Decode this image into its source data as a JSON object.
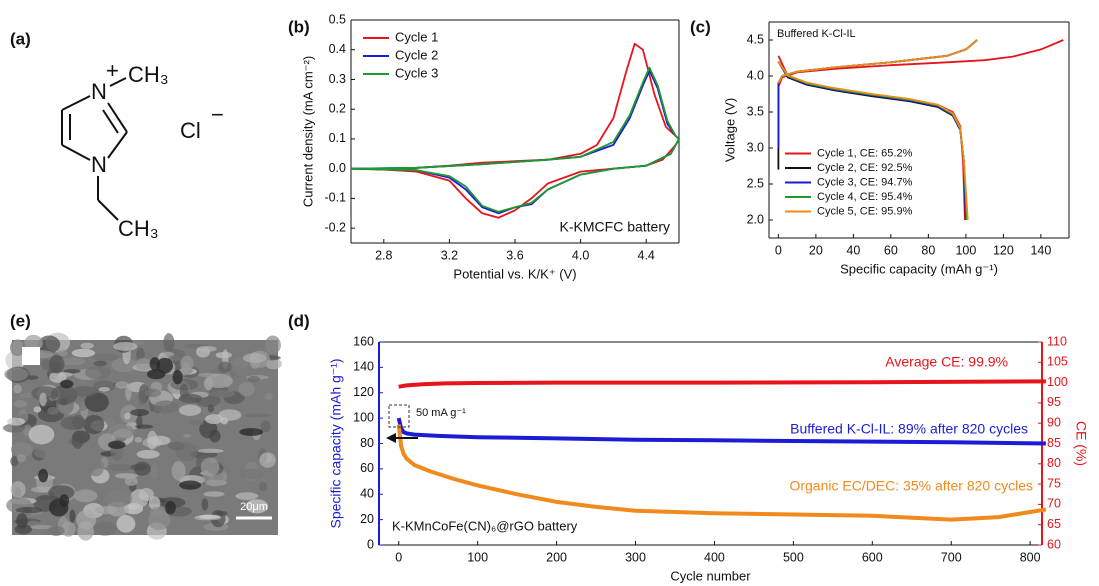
{
  "figure_labels": [
    "(a)",
    "(b)",
    "(c)",
    "(e)",
    "(d)"
  ],
  "molecule": {
    "atoms": [
      "N",
      "N"
    ],
    "charge": "+",
    "methyl": "CH₃",
    "ethyl": "CH₃",
    "anion": "Cl",
    "anion_charge": "−"
  },
  "sem": {
    "scale_bar": "20μm"
  },
  "chart_data": [
    {
      "type": "line",
      "xlabel": "Potential vs. K/K⁺ (V)",
      "ylabel": "Current density (mA cm⁻²)",
      "xlim": [
        2.6,
        4.6
      ],
      "ylim": [
        -0.25,
        0.5
      ],
      "xticks": [
        2.8,
        3.2,
        3.6,
        {
          "value": 4,
          "label": "4.0"
        },
        4.4
      ],
      "yticks": [
        -0.2,
        -0.1,
        {
          "value": 0,
          "label": "0.0"
        },
        0.1,
        0.2,
        0.3,
        0.4,
        0.5
      ],
      "legend": "upper left",
      "annotations": [
        "K-KMCFC battery"
      ],
      "series": [
        {
          "name": "Cycle 1",
          "color": "#e8141b",
          "x": [
            2.6,
            2.8,
            3.0,
            3.2,
            3.4,
            3.6,
            3.8,
            4.0,
            4.1,
            4.2,
            4.28,
            4.33,
            4.38,
            4.45,
            4.52,
            4.58,
            4.6,
            4.58,
            4.5,
            4.4,
            4.2,
            4.0,
            3.8,
            3.7,
            3.6,
            3.5,
            3.4,
            3.3,
            3.2,
            3.0,
            2.8,
            2.6
          ],
          "values": [
            0,
            0,
            0.003,
            0.01,
            0.02,
            0.025,
            0.03,
            0.05,
            0.08,
            0.17,
            0.33,
            0.42,
            0.4,
            0.25,
            0.14,
            0.11,
            0.1,
            0.08,
            0.03,
            0.01,
            0,
            -0.01,
            -0.05,
            -0.1,
            -0.14,
            -0.165,
            -0.15,
            -0.1,
            -0.04,
            -0.01,
            -0.003,
            0
          ]
        },
        {
          "name": "Cycle 2",
          "color": "#1c1cd6",
          "x": [
            2.6,
            3.0,
            3.4,
            3.8,
            4.0,
            4.2,
            4.3,
            4.38,
            4.42,
            4.47,
            4.53,
            4.58,
            4.6,
            4.55,
            4.4,
            4.2,
            4.0,
            3.8,
            3.7,
            3.6,
            3.5,
            3.4,
            3.3,
            3.2,
            3.0,
            2.6
          ],
          "values": [
            0,
            0.003,
            0.015,
            0.03,
            0.04,
            0.08,
            0.17,
            0.28,
            0.33,
            0.27,
            0.15,
            0.11,
            0.1,
            0.05,
            0.01,
            0,
            -0.02,
            -0.07,
            -0.12,
            -0.13,
            -0.15,
            -0.13,
            -0.07,
            -0.03,
            -0.005,
            0
          ]
        },
        {
          "name": "Cycle 3",
          "color": "#1e9a2e",
          "x": [
            2.6,
            3.0,
            3.4,
            3.8,
            4.0,
            4.2,
            4.3,
            4.38,
            4.42,
            4.47,
            4.53,
            4.58,
            4.6,
            4.55,
            4.4,
            4.2,
            4.0,
            3.8,
            3.7,
            3.6,
            3.5,
            3.4,
            3.3,
            3.2,
            3.0,
            2.6
          ],
          "values": [
            0,
            0.003,
            0.015,
            0.03,
            0.04,
            0.09,
            0.18,
            0.29,
            0.34,
            0.28,
            0.16,
            0.11,
            0.1,
            0.05,
            0.01,
            0,
            -0.02,
            -0.07,
            -0.115,
            -0.13,
            -0.145,
            -0.125,
            -0.06,
            -0.025,
            -0.005,
            0
          ]
        }
      ]
    },
    {
      "type": "line",
      "title": "Buffered K-Cl-IL",
      "xlabel": "Specific capacity (mAh g⁻¹)",
      "ylabel": "Voltage (V)",
      "xlim": [
        -5,
        155
      ],
      "ylim": [
        1.75,
        4.75
      ],
      "xticks": [
        0,
        20,
        40,
        60,
        80,
        100,
        120,
        140
      ],
      "yticks": [
        {
          "value": 2,
          "label": "2.0"
        },
        2.5,
        {
          "value": 3,
          "label": "3.0"
        },
        3.5,
        {
          "value": 4,
          "label": "4.0"
        },
        4.5
      ],
      "legend": "lower left",
      "series": [
        {
          "name": "Cycle 1, CE: 65.2%",
          "color": "#e8141b",
          "x": [
            0,
            2,
            10,
            30,
            60,
            90,
            110,
            125,
            140,
            152,
            null,
            0,
            5,
            15,
            30,
            50,
            70,
            85,
            93,
            97,
            98.5,
            99.5
          ],
          "values": [
            3.85,
            3.98,
            4.05,
            4.1,
            4.15,
            4.19,
            4.22,
            4.27,
            4.37,
            4.5,
            null,
            4.28,
            4.0,
            3.9,
            3.82,
            3.74,
            3.67,
            3.6,
            3.5,
            3.3,
            2.8,
            2.0
          ]
        },
        {
          "name": "Cycle 2, CE: 92.5%",
          "color": "#111111",
          "x": [
            0,
            0,
            2,
            10,
            30,
            60,
            90,
            100,
            106,
            null,
            0,
            5,
            15,
            30,
            50,
            70,
            85,
            93,
            97,
            99,
            100
          ],
          "values": [
            2.7,
            3.9,
            4.0,
            4.06,
            4.12,
            4.19,
            4.28,
            4.37,
            4.5,
            null,
            4.2,
            3.98,
            3.88,
            3.8,
            3.72,
            3.65,
            3.57,
            3.45,
            3.25,
            2.8,
            2.0
          ]
        },
        {
          "name": "Cycle 3, CE: 94.7%",
          "color": "#1c1cd6",
          "x": [
            0,
            0,
            2,
            10,
            30,
            60,
            90,
            100,
            106,
            null,
            0,
            5,
            15,
            30,
            50,
            70,
            85,
            93,
            97,
            99,
            100
          ],
          "values": [
            3.0,
            3.9,
            4.0,
            4.06,
            4.12,
            4.19,
            4.28,
            4.37,
            4.5,
            null,
            4.2,
            3.99,
            3.89,
            3.81,
            3.73,
            3.66,
            3.58,
            3.46,
            3.26,
            2.8,
            2.0
          ]
        },
        {
          "name": "Cycle 4, CE: 95.4%",
          "color": "#1e9a2e",
          "x": [
            0,
            2,
            10,
            30,
            60,
            90,
            100,
            106,
            null,
            0,
            5,
            15,
            30,
            50,
            70,
            85,
            93,
            97,
            99,
            100.5
          ],
          "values": [
            3.9,
            4.0,
            4.06,
            4.12,
            4.19,
            4.28,
            4.37,
            4.5,
            null,
            4.2,
            4.0,
            3.9,
            3.82,
            3.74,
            3.67,
            3.59,
            3.47,
            3.27,
            2.8,
            2.0
          ]
        },
        {
          "name": "Cycle 5, CE: 95.9%",
          "color": "#f08a1c",
          "x": [
            0,
            2,
            10,
            30,
            60,
            90,
            100,
            106,
            null,
            0,
            5,
            15,
            30,
            50,
            70,
            85,
            93,
            97,
            99,
            101
          ],
          "values": [
            3.9,
            4.0,
            4.06,
            4.12,
            4.19,
            4.28,
            4.37,
            4.5,
            null,
            4.2,
            4.01,
            3.91,
            3.83,
            3.75,
            3.68,
            3.6,
            3.48,
            3.28,
            2.8,
            2.0
          ]
        }
      ]
    },
    {
      "type": "line",
      "xlabel": "Cycle number",
      "ylabel": "Specific capacity (mAh g⁻¹)",
      "y2label": "CE (%)",
      "ycolor": "#1c1cd6",
      "y2color": "#e8141b",
      "xlim": [
        -25,
        815
      ],
      "ylim": [
        0,
        160
      ],
      "y2lim": [
        60,
        110
      ],
      "xticks": [
        0,
        100,
        200,
        300,
        400,
        500,
        600,
        700,
        800
      ],
      "yticks": [
        0,
        20,
        40,
        60,
        80,
        100,
        120,
        140,
        160
      ],
      "y2ticks": [
        60,
        65,
        70,
        75,
        80,
        85,
        90,
        95,
        100,
        105,
        110
      ],
      "annotations": [
        "Average CE: 99.9%",
        "Buffered K-Cl-IL: 89% after 820 cycles",
        "Organic EC/DEC: 35% after 820 cycles",
        "50 mA g⁻¹",
        "K-KMnCoFe(CN)₆@rGO battery"
      ],
      "series": [
        {
          "color": "#1c1cd6",
          "x": [
            0,
            3,
            6,
            10,
            20,
            50,
            100,
            200,
            300,
            400,
            500,
            600,
            700,
            820
          ],
          "values": [
            100,
            92,
            89,
            88,
            87,
            86,
            85,
            84,
            83,
            82.5,
            82,
            81.5,
            81,
            80
          ]
        },
        {
          "color": "#f08a1c",
          "x": [
            0,
            3,
            6,
            10,
            20,
            40,
            70,
            100,
            150,
            200,
            250,
            300,
            400,
            500,
            600,
            700,
            760,
            800,
            820
          ],
          "values": [
            95,
            78,
            72,
            68,
            63,
            58,
            52,
            47,
            40,
            34,
            30,
            27,
            25,
            24,
            23,
            20,
            22,
            26,
            28
          ]
        },
        {
          "color": "#e8141b",
          "axis": "y2",
          "x": [
            0,
            10,
            30,
            60,
            100,
            200,
            400,
            600,
            820
          ],
          "values": [
            99,
            99.3,
            99.6,
            99.8,
            99.9,
            100,
            100,
            100.1,
            100.3
          ]
        }
      ]
    }
  ]
}
